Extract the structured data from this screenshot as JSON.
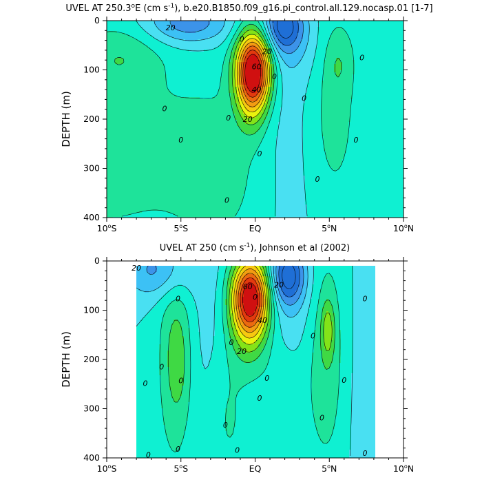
{
  "colors": {
    "n40": "#1f6fd6",
    "n30": "#3c93e9",
    "n20": "#3cc1f5",
    "n10": "#49e0f2",
    "zero": "#0ff0d2",
    "p10": "#1ee39a",
    "p20": "#3fd944",
    "p30": "#84e318",
    "p40": "#eaf20e",
    "p50": "#f7c910",
    "p60": "#f39c12",
    "p70": "#ec6a10",
    "p80": "#e33a0e",
    "p90": "#d01010"
  },
  "chart_data": [
    {
      "id": "model",
      "type": "contour",
      "title_pre": "UVEL AT 250.3",
      "title_sup1": "o",
      "title_mid": "E (cm s",
      "title_sup2": "-1",
      "title_post": "), b.e20.B1850.f09_g16.pi_control.all.129.nocasp.01 [1-7]",
      "ylabel": "DEPTH (m)",
      "xlim": [
        -10,
        10
      ],
      "ylim": [
        400,
        0
      ],
      "data_xrange": [
        -10,
        10
      ],
      "data_yrange": [
        0,
        400
      ],
      "yticks": [
        {
          "v": 0,
          "t": "0"
        },
        {
          "v": 100,
          "t": "100"
        },
        {
          "v": 200,
          "t": "200"
        },
        {
          "v": 300,
          "t": "300"
        },
        {
          "v": 400,
          "t": "400"
        }
      ],
      "xticks": [
        {
          "v": -10,
          "n": "10",
          "h": "S"
        },
        {
          "v": -5,
          "n": "5",
          "h": "S"
        },
        {
          "v": 0,
          "n": "EQ",
          "h": ""
        },
        {
          "v": 5,
          "n": "5",
          "h": "N"
        },
        {
          "v": 10,
          "n": "10",
          "h": "N"
        }
      ],
      "background_level": 0,
      "features": [
        {
          "name": "core-jet",
          "x": [
            -1.0,
            0.5
          ],
          "y": [
            0,
            220
          ],
          "cx": -0.1,
          "cy": 95,
          "sx": 0.85,
          "sy": 55,
          "peak": 95
        },
        {
          "name": "core-jet-tail",
          "x": [
            -1.5,
            1.5
          ],
          "y": [
            0,
            230
          ],
          "cx": -0.2,
          "cy": 150,
          "sx": 0.7,
          "sy": 55,
          "peak": 25
        },
        {
          "name": "west-layer",
          "x": [
            -10,
            -4
          ],
          "y": [
            0,
            400
          ],
          "cx": -10.5,
          "cy": 260,
          "sx": 4.0,
          "sy": 130,
          "peak": 18
        },
        {
          "name": "west-upper",
          "x": [
            -10,
            -7
          ],
          "y": [
            0,
            150
          ],
          "cx": -9.0,
          "cy": 70,
          "sx": 2.0,
          "sy": 45,
          "peak": 14
        },
        {
          "name": "central-deep",
          "x": [
            -5,
            0
          ],
          "y": [
            150,
            400
          ],
          "cx": -2.4,
          "cy": 300,
          "sx": 2.6,
          "sy": 140,
          "peak": 13
        },
        {
          "name": "north-band",
          "x": [
            3,
            7
          ],
          "y": [
            0,
            400
          ],
          "cx": 5.3,
          "cy": 180,
          "sx": 1.3,
          "sy": 160,
          "peak": 14
        },
        {
          "name": "north-core",
          "x": [
            4,
            6
          ],
          "y": [
            40,
            140
          ],
          "cx": 5.6,
          "cy": 85,
          "sx": 0.6,
          "sy": 45,
          "peak": 10
        },
        {
          "name": "east-upper",
          "x": [
            7,
            10
          ],
          "y": [
            0,
            100
          ],
          "cx": 10,
          "cy": 40,
          "sx": 2.0,
          "sy": 60,
          "peak": 6
        },
        {
          "name": "west-surface-flow",
          "x": [
            -6,
            -2
          ],
          "y": [
            0,
            60
          ],
          "cx": -4.5,
          "cy": 5,
          "sx": 2.0,
          "sy": 30,
          "peak": -28
        },
        {
          "name": "east-surface-flow",
          "x": [
            1,
            4
          ],
          "y": [
            0,
            60
          ],
          "cx": 1.9,
          "cy": 10,
          "sx": 0.9,
          "sy": 35,
          "peak": -40
        },
        {
          "name": "east-shallow",
          "x": [
            0.5,
            4
          ],
          "y": [
            0,
            120
          ],
          "cx": 2.3,
          "cy": 45,
          "sx": 1.6,
          "sy": 60,
          "peak": -10
        },
        {
          "name": "north-west-channel",
          "x": [
            -2,
            3
          ],
          "y": [
            0,
            400
          ],
          "cx": 2.2,
          "cy": 250,
          "sx": 1.4,
          "sy": 200,
          "peak": -6
        }
      ],
      "contour_labels": [
        {
          "t": "20",
          "x": -5.7,
          "y": 14
        },
        {
          "t": "20",
          "x": 0.8,
          "y": 62
        },
        {
          "t": "60",
          "x": 0.1,
          "y": 93
        },
        {
          "t": "40",
          "x": 0.1,
          "y": 140
        },
        {
          "t": "20",
          "x": -0.5,
          "y": 200
        },
        {
          "t": "0",
          "x": -0.9,
          "y": 37
        },
        {
          "t": "0",
          "x": 1.3,
          "y": 113
        },
        {
          "t": "0",
          "x": 3.3,
          "y": 157
        },
        {
          "t": "0",
          "x": 7.2,
          "y": 75
        },
        {
          "t": "0",
          "x": -6.1,
          "y": 178
        },
        {
          "t": "0",
          "x": -5.0,
          "y": 242
        },
        {
          "t": "0",
          "x": -1.8,
          "y": 197
        },
        {
          "t": "0",
          "x": 0.3,
          "y": 270
        },
        {
          "t": "0",
          "x": 4.2,
          "y": 322
        },
        {
          "t": "0",
          "x": 6.8,
          "y": 242
        },
        {
          "t": "0",
          "x": -1.9,
          "y": 364
        }
      ]
    },
    {
      "id": "obs",
      "type": "contour",
      "title_pre": "UVEL AT 250 (cm s",
      "title_sup1": "",
      "title_mid": "",
      "title_sup2": "-1",
      "title_post": "), Johnson et al (2002)",
      "ylabel": "DEPTH (m)",
      "xlim": [
        -10,
        10
      ],
      "ylim": [
        400,
        0
      ],
      "data_xrange": [
        -8,
        8.1
      ],
      "data_yrange": [
        10,
        400
      ],
      "yticks": [
        {
          "v": 0,
          "t": "0"
        },
        {
          "v": 100,
          "t": "100"
        },
        {
          "v": 200,
          "t": "200"
        },
        {
          "v": 300,
          "t": "300"
        },
        {
          "v": 400,
          "t": "400"
        }
      ],
      "xticks": [
        {
          "v": -10,
          "n": "10",
          "h": "S"
        },
        {
          "v": -5,
          "n": "5",
          "h": "S"
        },
        {
          "v": 0,
          "n": "EQ",
          "h": ""
        },
        {
          "v": 5,
          "n": "5",
          "h": "N"
        },
        {
          "v": 10,
          "n": "10",
          "h": "N"
        }
      ],
      "background_level": 0,
      "features": [
        {
          "name": "core-jet",
          "x": [
            -1.0,
            0.5
          ],
          "y": [
            0,
            220
          ],
          "cx": -0.3,
          "cy": 70,
          "sx": 0.9,
          "sy": 55,
          "peak": 95
        },
        {
          "name": "core-jet-tail",
          "x": [
            -1.5,
            1.5
          ],
          "y": [
            0,
            230
          ],
          "cx": -0.4,
          "cy": 140,
          "sx": 0.9,
          "sy": 60,
          "peak": 22
        },
        {
          "name": "west-band",
          "x": [
            -8,
            -4
          ],
          "y": [
            0,
            400
          ],
          "cx": -5.4,
          "cy": 200,
          "sx": 0.9,
          "sy": 170,
          "peak": 18
        },
        {
          "name": "west-core",
          "x": [
            -6,
            -4
          ],
          "y": [
            50,
            300
          ],
          "cx": -5.2,
          "cy": 200,
          "sx": 0.5,
          "sy": 70,
          "peak": 10
        },
        {
          "name": "north-band",
          "x": [
            3,
            7
          ],
          "y": [
            0,
            400
          ],
          "cx": 4.8,
          "cy": 190,
          "sx": 1.0,
          "sy": 170,
          "peak": 18
        },
        {
          "name": "north-core",
          "x": [
            4,
            6
          ],
          "y": [
            50,
            300
          ],
          "cx": 4.9,
          "cy": 140,
          "sx": 0.3,
          "sy": 40,
          "peak": 24
        },
        {
          "name": "deep-central",
          "x": [
            -4,
            0
          ],
          "y": [
            200,
            400
          ],
          "cx": -2.0,
          "cy": 320,
          "sx": 1.2,
          "sy": 120,
          "peak": 12
        },
        {
          "name": "deep-right",
          "x": [
            0,
            4
          ],
          "y": [
            200,
            400
          ],
          "cx": 1.6,
          "cy": 300,
          "sx": 1.0,
          "sy": 110,
          "peak": 10
        },
        {
          "name": "west-surface-flow",
          "x": [
            -8,
            -2
          ],
          "y": [
            0,
            100
          ],
          "cx": -6.5,
          "cy": 18,
          "sx": 1.6,
          "sy": 40,
          "peak": -24
        },
        {
          "name": "east-surface-flow",
          "x": [
            1,
            5
          ],
          "y": [
            0,
            100
          ],
          "cx": 2.2,
          "cy": 30,
          "sx": 0.8,
          "sy": 40,
          "peak": -42
        },
        {
          "name": "east-shallow",
          "x": [
            0.5,
            4
          ],
          "y": [
            0,
            200
          ],
          "cx": 2.3,
          "cy": 80,
          "sx": 1.3,
          "sy": 90,
          "peak": -10
        },
        {
          "name": "west-channel",
          "x": [
            -5,
            -1
          ],
          "y": [
            0,
            400
          ],
          "cx": -3.2,
          "cy": 200,
          "sx": 0.9,
          "sy": 200,
          "peak": -6
        },
        {
          "name": "east-channel",
          "x": [
            5,
            8
          ],
          "y": [
            0,
            400
          ],
          "cx": 6.8,
          "cy": 220,
          "sx": 0.9,
          "sy": 200,
          "peak": -4
        }
      ],
      "contour_labels": [
        {
          "t": "20",
          "x": -8.0,
          "y": 14
        },
        {
          "t": "60",
          "x": -0.5,
          "y": 52
        },
        {
          "t": "20",
          "x": 1.6,
          "y": 48
        },
        {
          "t": "40",
          "x": 0.5,
          "y": 120
        },
        {
          "t": "20",
          "x": -0.9,
          "y": 183
        },
        {
          "t": "0",
          "x": -5.2,
          "y": 76
        },
        {
          "t": "0",
          "x": 0.0,
          "y": 73
        },
        {
          "t": "0",
          "x": -1.6,
          "y": 165
        },
        {
          "t": "0",
          "x": 3.9,
          "y": 152
        },
        {
          "t": "0",
          "x": 7.4,
          "y": 76
        },
        {
          "t": "0",
          "x": -6.3,
          "y": 215
        },
        {
          "t": "0",
          "x": -5.0,
          "y": 243
        },
        {
          "t": "0",
          "x": -7.4,
          "y": 248
        },
        {
          "t": "0",
          "x": 0.8,
          "y": 238
        },
        {
          "t": "0",
          "x": 6.0,
          "y": 242
        },
        {
          "t": "0",
          "x": 0.3,
          "y": 278
        },
        {
          "t": "0",
          "x": -2.0,
          "y": 333
        },
        {
          "t": "0",
          "x": 4.5,
          "y": 318
        },
        {
          "t": "0",
          "x": -5.2,
          "y": 382
        },
        {
          "t": "0",
          "x": -1.2,
          "y": 384
        },
        {
          "t": "0",
          "x": 7.4,
          "y": 390
        },
        {
          "t": "0",
          "x": -7.2,
          "y": 394
        }
      ]
    }
  ]
}
